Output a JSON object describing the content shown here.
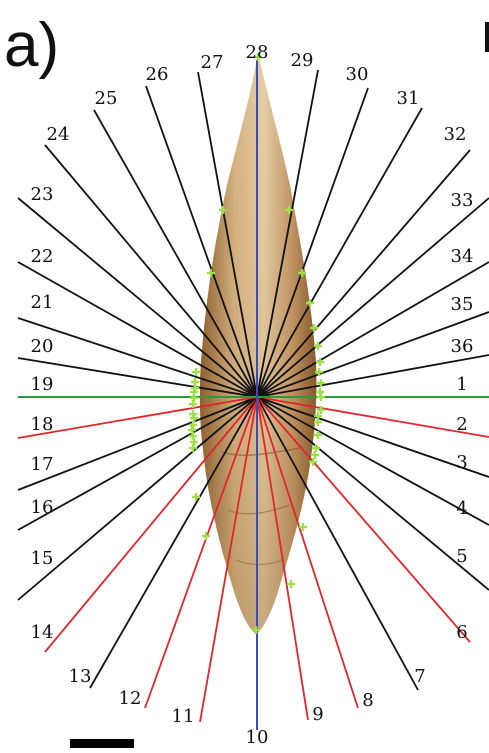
{
  "panel_label": "a)",
  "colors": {
    "black_ray": "#111111",
    "red_ray": "#e0262a",
    "horizontal_axis": "#2a9a3a",
    "vertical_axis": "#3d4fa8",
    "marker": "#9ee04a",
    "tooth_light": "#d9b98a",
    "tooth_mid": "#b98a52",
    "tooth_dark": "#7a5226",
    "scale_bar": "#000000"
  },
  "ray_labels": [
    "1",
    "2",
    "3",
    "4",
    "5",
    "6",
    "7",
    "8",
    "9",
    "10",
    "11",
    "12",
    "13",
    "14",
    "15",
    "16",
    "17",
    "18",
    "19",
    "20",
    "21",
    "22",
    "23",
    "24",
    "25",
    "26",
    "27",
    "28",
    "29",
    "30",
    "31",
    "32",
    "33",
    "34",
    "35",
    "36"
  ],
  "ray_colors": [
    "green",
    "red",
    "black",
    "black",
    "black",
    "red",
    "black",
    "red",
    "red",
    "blue",
    "red",
    "red",
    "black",
    "red",
    "black",
    "black",
    "black",
    "red",
    "green",
    "black",
    "black",
    "black",
    "black",
    "black",
    "black",
    "black",
    "black",
    "blue",
    "black",
    "black",
    "black",
    "black",
    "black",
    "black",
    "black",
    "black"
  ],
  "marker_count": 38,
  "scale_bar": {
    "label": ""
  }
}
